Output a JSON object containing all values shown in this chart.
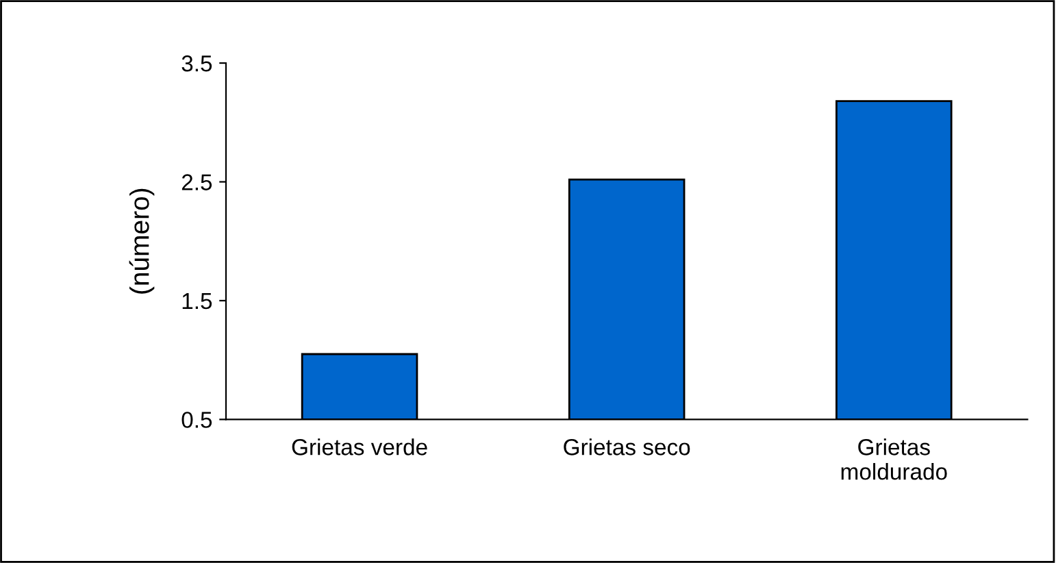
{
  "chart_data": {
    "type": "bar",
    "ylabel": "(número)",
    "categories": [
      "Grietas verde",
      "Grietas seco",
      "Grietas\nmoldurado"
    ],
    "values": [
      1.05,
      2.52,
      3.18
    ],
    "color": "#0066cc",
    "ylim": [
      0.5,
      3.5
    ],
    "yticks": [
      0.5,
      1.5,
      2.5,
      3.5
    ],
    "grid": false,
    "legend": false
  }
}
